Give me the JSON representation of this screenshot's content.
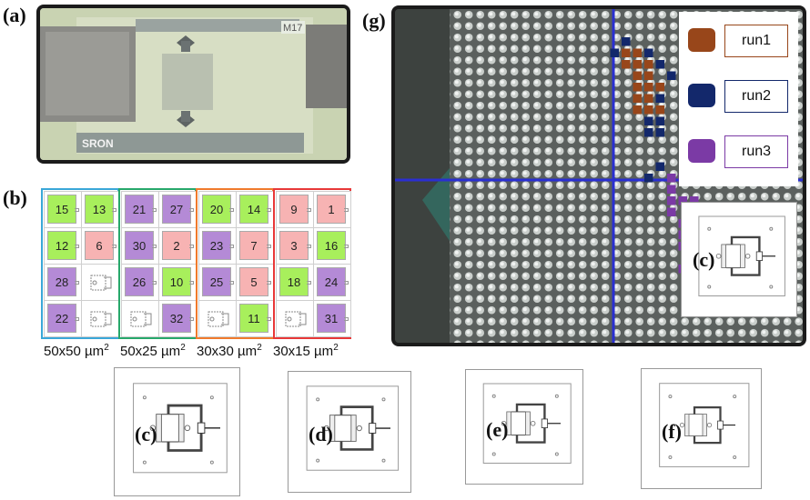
{
  "panel_labels": {
    "a": "(a)",
    "b": "(b)",
    "c": "(c)",
    "d": "(d)",
    "e": "(e)",
    "f": "(f)",
    "g": "(g)"
  },
  "photo_a": {
    "chip_mark": "M17",
    "logo_text": "SRON"
  },
  "colors": {
    "green": "#a8ef5c",
    "pink": "#f7b3b3",
    "purple": "#b48ad6",
    "blue_group": "#3aa7d8",
    "green_group": "#27a86b",
    "orange_group": "#f07a2c",
    "red_group": "#e83838"
  },
  "groups": [
    {
      "size": "50x50 µm",
      "sup": "2",
      "cells": [
        {
          "label": "15",
          "color": "green"
        },
        {
          "label": "13",
          "color": "green"
        },
        {
          "label": "12",
          "color": "green"
        },
        {
          "label": "6",
          "color": "pink"
        },
        {
          "label": "28",
          "color": "purple"
        },
        {
          "label": "",
          "color": "device"
        },
        {
          "label": "22",
          "color": "purple"
        },
        {
          "label": "",
          "color": "device"
        }
      ]
    },
    {
      "size": "50x25 µm",
      "sup": "2",
      "cells": [
        {
          "label": "21",
          "color": "purple"
        },
        {
          "label": "27",
          "color": "purple"
        },
        {
          "label": "30",
          "color": "purple"
        },
        {
          "label": "2",
          "color": "pink"
        },
        {
          "label": "26",
          "color": "purple"
        },
        {
          "label": "10",
          "color": "green"
        },
        {
          "label": "",
          "color": "device"
        },
        {
          "label": "32",
          "color": "purple"
        }
      ]
    },
    {
      "size": "30x30 µm",
      "sup": "2",
      "cells": [
        {
          "label": "20",
          "color": "green"
        },
        {
          "label": "14",
          "color": "green"
        },
        {
          "label": "23",
          "color": "purple"
        },
        {
          "label": "7",
          "color": "pink"
        },
        {
          "label": "25",
          "color": "purple"
        },
        {
          "label": "5",
          "color": "pink"
        },
        {
          "label": "",
          "color": "device"
        },
        {
          "label": "11",
          "color": "green"
        }
      ]
    },
    {
      "size": "30x15 µm",
      "sup": "2",
      "cells": [
        {
          "label": "9",
          "color": "pink"
        },
        {
          "label": "1",
          "color": "pink"
        },
        {
          "label": "3",
          "color": "pink"
        },
        {
          "label": "16",
          "color": "green"
        },
        {
          "label": "18",
          "color": "green"
        },
        {
          "label": "24",
          "color": "purple"
        },
        {
          "label": "",
          "color": "device"
        },
        {
          "label": "31",
          "color": "purple"
        }
      ]
    }
  ],
  "legend": [
    {
      "label": "run1",
      "color": "#98461a"
    },
    {
      "label": "run2",
      "color": "#13286b"
    },
    {
      "label": "run3",
      "color": "#7b3aa5"
    }
  ]
}
